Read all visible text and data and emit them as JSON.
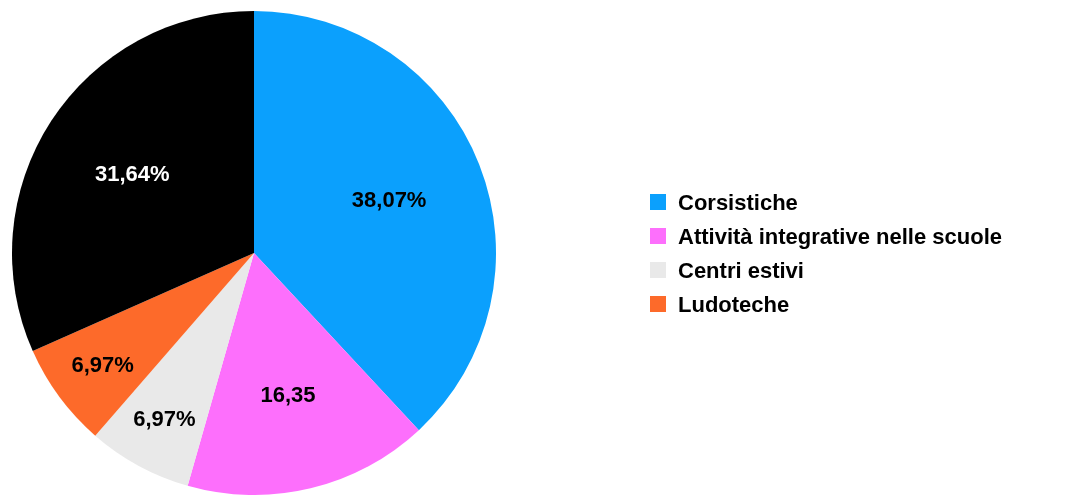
{
  "chart_data": {
    "type": "pie",
    "categories": [
      "Corsistiche",
      "Attività integrative nelle scuole",
      "Centri estivi",
      "Ludoteche",
      null
    ],
    "values": [
      38.07,
      16.35,
      6.97,
      6.97,
      31.64
    ],
    "colors": [
      "#0ba0fd",
      "#fd6ffc",
      "#e9e9e9",
      "#fd6a2a",
      "#000000"
    ],
    "value_labels": [
      "38,07%",
      "16,35",
      "6,97%",
      "6,97%",
      "31,64%"
    ],
    "legend": "right"
  }
}
